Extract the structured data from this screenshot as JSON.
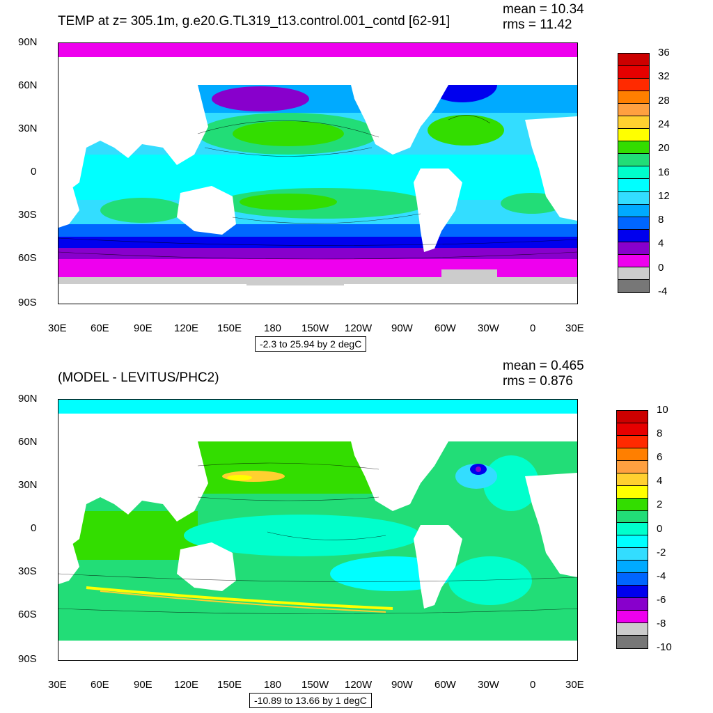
{
  "panels": [
    {
      "title": "TEMP at z= 305.1m, g.e20.G.TL319_t13.control.001_contd [62-91]",
      "mean_text": "mean = 10.34",
      "rms_text": "rms = 11.42",
      "range_text": "-2.3 to 25.94 by 2 degC",
      "colorbar": {
        "labels": [
          "36",
          "32",
          "28",
          "24",
          "20",
          "16",
          "12",
          "8",
          "4",
          "0",
          "-4"
        ],
        "colors": [
          "#cc0000",
          "#e60000",
          "#ff2a00",
          "#ff7f00",
          "#ffa040",
          "#ffd030",
          "#ffff00",
          "#33dd00",
          "#22dd77",
          "#00ffcc",
          "#00ffff",
          "#33ddff",
          "#00aaff",
          "#0066ff",
          "#0000ee",
          "#8800cc",
          "#ee00ee",
          "#cccccc",
          "#777777"
        ]
      }
    },
    {
      "title": "(MODEL - LEVITUS/PHC2)",
      "mean_text": "mean = 0.465",
      "rms_text": "rms = 0.876",
      "range_text": "-10.89 to 13.66 by 1 degC",
      "colorbar": {
        "labels": [
          "10",
          "8",
          "6",
          "4",
          "2",
          "0",
          "-2",
          "-4",
          "-6",
          "-8",
          "-10"
        ],
        "colors": [
          "#cc0000",
          "#e60000",
          "#ff2a00",
          "#ff7f00",
          "#ffa040",
          "#ffd030",
          "#ffff00",
          "#33dd00",
          "#22dd77",
          "#00ffcc",
          "#00ffff",
          "#33ddff",
          "#00aaff",
          "#0066ff",
          "#0000ee",
          "#8800cc",
          "#ee00ee",
          "#cccccc",
          "#777777"
        ]
      }
    }
  ],
  "axes": {
    "x_ticks": [
      "30E",
      "60E",
      "90E",
      "120E",
      "150E",
      "180",
      "150W",
      "120W",
      "90W",
      "60W",
      "30W",
      "0",
      "30E"
    ],
    "y_ticks": [
      "90N",
      "60N",
      "30N",
      "0",
      "30S",
      "60S",
      "90S"
    ]
  },
  "chart_data": [
    {
      "type": "heatmap",
      "title": "TEMP at z= 305.1m, g.e20.G.TL319_t13.control.001_contd [62-91]",
      "mean": 10.34,
      "rms": 11.42,
      "contour_min": -2.3,
      "contour_max": 25.94,
      "contour_interval": 2,
      "units": "degC",
      "colorbar_levels": [
        -4,
        36
      ],
      "colorbar_tick_values": [
        36,
        32,
        28,
        24,
        20,
        16,
        12,
        8,
        4,
        0,
        -4
      ],
      "x_range": [
        "30E",
        "30E"
      ],
      "y_range": [
        "90S",
        "90N"
      ]
    },
    {
      "type": "heatmap",
      "title": "(MODEL - LEVITUS/PHC2)",
      "mean": 0.465,
      "rms": 0.876,
      "contour_min": -10.89,
      "contour_max": 13.66,
      "contour_interval": 1,
      "units": "degC",
      "colorbar_levels": [
        -10,
        10
      ],
      "colorbar_tick_values": [
        10,
        8,
        6,
        4,
        2,
        0,
        -2,
        -4,
        -6,
        -8,
        -10
      ],
      "x_range": [
        "30E",
        "30E"
      ],
      "y_range": [
        "90S",
        "90N"
      ]
    }
  ]
}
